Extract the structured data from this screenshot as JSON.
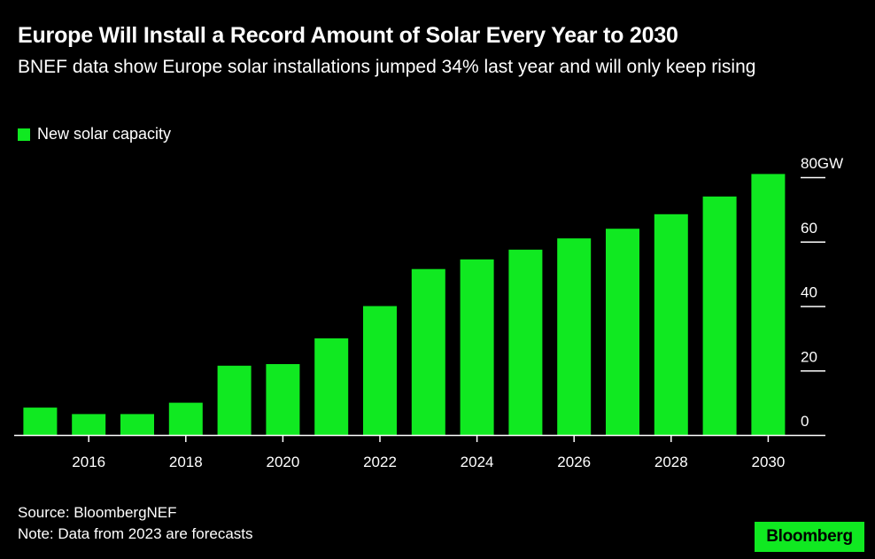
{
  "header": {
    "title": "Europe Will Install a Record Amount of Solar Every Year to 2030",
    "subtitle": "BNEF data show Europe solar installations jumped 34% last year and will only keep rising"
  },
  "legend": {
    "label": "New solar capacity",
    "color": "#10E921"
  },
  "footer": {
    "source": "Source: BloombergNEF",
    "note": "Note: Data from 2023 are forecasts"
  },
  "brand": {
    "label": "Bloomberg",
    "bg_color": "#10E921"
  },
  "chart_data": {
    "type": "bar",
    "series": [
      {
        "name": "New solar capacity",
        "color": "#10E921",
        "values": [
          8.5,
          6.5,
          6.5,
          10,
          21.5,
          22,
          30,
          40,
          51.5,
          54.5,
          57.5,
          61,
          64,
          68.5,
          74,
          81
        ]
      }
    ],
    "categories": [
      "2015",
      "2016",
      "2017",
      "2018",
      "2019",
      "2020",
      "2021",
      "2022",
      "2023",
      "2024",
      "2025",
      "2026",
      "2027",
      "2028",
      "2029",
      "2030"
    ],
    "x_tick_labels": [
      "2016",
      "2018",
      "2020",
      "2022",
      "2024",
      "2026",
      "2028",
      "2030"
    ],
    "y_ticks": [
      0,
      20,
      40,
      60,
      80
    ],
    "y_tick_labels": [
      "0",
      "20",
      "40",
      "60",
      "80GW"
    ],
    "ylim": [
      0,
      80
    ],
    "title": "Europe Will Install a Record Amount of Solar Every Year to 2030",
    "xlabel": "",
    "ylabel": "",
    "grid": false,
    "legend_position": "top-left"
  }
}
